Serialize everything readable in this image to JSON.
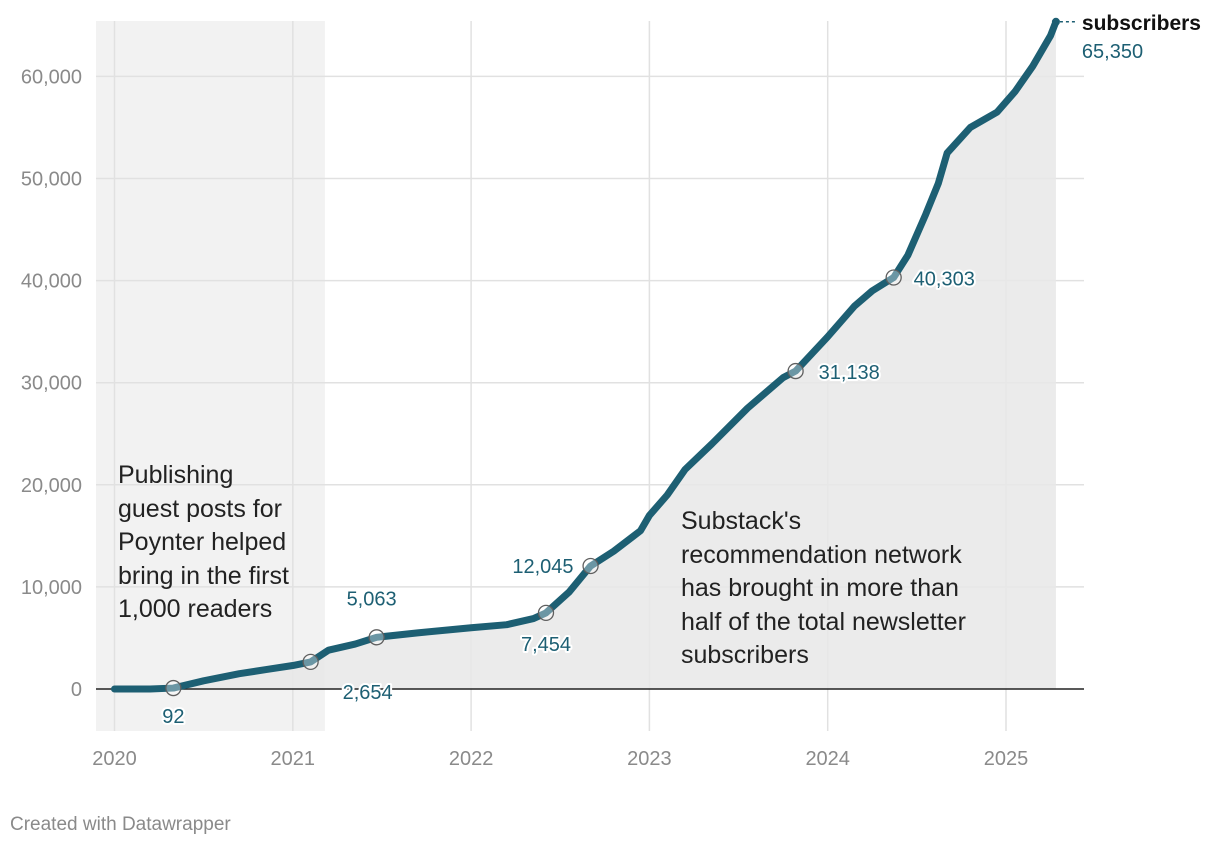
{
  "chart_data": {
    "type": "area",
    "series": [
      {
        "name": "subscribers",
        "x": [
          2020.0,
          2020.2,
          2020.33,
          2020.5,
          2020.7,
          2020.85,
          2021.0,
          2021.1,
          2021.2,
          2021.35,
          2021.47,
          2021.7,
          2022.0,
          2022.2,
          2022.35,
          2022.42,
          2022.55,
          2022.67,
          2022.8,
          2022.95,
          2023.0,
          2023.1,
          2023.2,
          2023.35,
          2023.55,
          2023.75,
          2023.82,
          2024.0,
          2024.15,
          2024.25,
          2024.37,
          2024.45,
          2024.55,
          2024.62,
          2024.67,
          2024.8,
          2024.95,
          2025.05,
          2025.15,
          2025.25,
          2025.28
        ],
        "values": [
          0,
          0,
          92,
          800,
          1500,
          1900,
          2300,
          2654,
          3800,
          4400,
          5063,
          5500,
          6000,
          6300,
          6900,
          7454,
          9500,
          12045,
          13500,
          15500,
          17000,
          19000,
          21500,
          24000,
          27500,
          30500,
          31138,
          34500,
          37500,
          39000,
          40303,
          42500,
          46500,
          49500,
          52500,
          55000,
          56500,
          58500,
          61000,
          64000,
          65350
        ]
      }
    ],
    "highlighted_points": [
      {
        "x": 2020.33,
        "value": 92,
        "label": "92"
      },
      {
        "x": 2021.1,
        "value": 2654,
        "label": "2,654"
      },
      {
        "x": 2021.47,
        "value": 5063,
        "label": "5,063"
      },
      {
        "x": 2022.42,
        "value": 7454,
        "label": "7,454"
      },
      {
        "x": 2022.67,
        "value": 12045,
        "label": "12,045"
      },
      {
        "x": 2023.82,
        "value": 31138,
        "label": "31,138"
      },
      {
        "x": 2024.37,
        "value": 40303,
        "label": "40,303"
      }
    ],
    "end_label": {
      "series": "subscribers",
      "value_text": "65,350"
    },
    "x_ticks": [
      {
        "value": 2020,
        "label": "2020"
      },
      {
        "value": 2021,
        "label": "2021"
      },
      {
        "value": 2022,
        "label": "2022"
      },
      {
        "value": 2023,
        "label": "2023"
      },
      {
        "value": 2024,
        "label": "2024"
      },
      {
        "value": 2025,
        "label": "2025"
      }
    ],
    "y_ticks": [
      {
        "value": 0,
        "label": "0"
      },
      {
        "value": 10000,
        "label": "10,000"
      },
      {
        "value": 20000,
        "label": "20,000"
      },
      {
        "value": 30000,
        "label": "30,000"
      },
      {
        "value": 40000,
        "label": "40,000"
      },
      {
        "value": 50000,
        "label": "50,000"
      },
      {
        "value": 60000,
        "label": "60,000"
      }
    ],
    "xlim": [
      2019.9,
      2025.43
    ],
    "ylim": [
      -4100,
      65500
    ],
    "grid": true,
    "highlight_ranges": [
      {
        "x_start": 2019.9,
        "x_end": 2021.18,
        "note": "Publishing guest posts for Poynter helped bring in the first 1,000 readers",
        "lines": [
          "Publishing",
          "guest posts for",
          "Poynter helped",
          "bring in the first",
          "1,000 readers"
        ]
      },
      {
        "x_start": 2021.18,
        "x_end": 2025.28,
        "note": "Substack's recommendation network has brought in more than half of the total newsletter subscribers",
        "lines": [
          "Substack's",
          "recommendation network",
          "has brought in more than",
          "half of the total newsletter",
          "subscribers"
        ]
      }
    ],
    "colors": {
      "line": "#1d5f73",
      "area": "#e8e8e8",
      "band_1": "#f2f2f2",
      "grid": "#e1e1e1",
      "baseline": "#222222"
    }
  },
  "footer": {
    "credit": "Created with Datawrapper"
  }
}
